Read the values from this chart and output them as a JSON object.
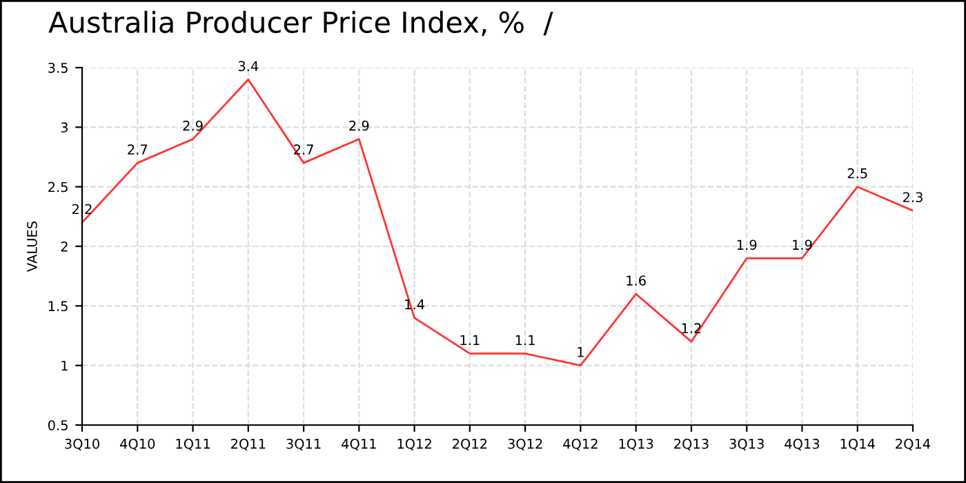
{
  "chart_data": {
    "type": "line",
    "title": "Australia Producer Price Index, %  /",
    "ylabel": "VALUES",
    "categories": [
      "3Q10",
      "4Q10",
      "1Q11",
      "2Q11",
      "3Q11",
      "4Q11",
      "1Q12",
      "2Q12",
      "3Q12",
      "4Q12",
      "1Q13",
      "2Q13",
      "3Q13",
      "4Q13",
      "1Q14",
      "2Q14"
    ],
    "series": [
      {
        "color": "#ff3333",
        "values": [
          2.2,
          2.7,
          2.9,
          3.4,
          2.7,
          2.9,
          1.4,
          1.1,
          1.1,
          1,
          1.6,
          1.2,
          1.9,
          1.9,
          2.5,
          2.3
        ]
      }
    ],
    "ylim": [
      0.5,
      3.5
    ],
    "yticks": [
      0.5,
      1,
      1.5,
      2,
      2.5,
      3,
      3.5
    ],
    "grid": true,
    "data_labels": true,
    "marker": "none",
    "line_style": "solid"
  }
}
